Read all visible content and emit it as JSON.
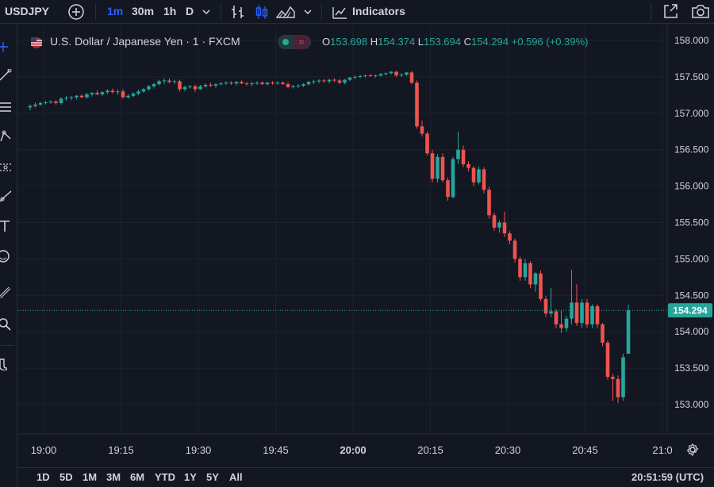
{
  "toolbar": {
    "symbol": "USDJPY",
    "intervals": [
      "1m",
      "30m",
      "1h",
      "D"
    ],
    "active_interval": "1m",
    "indicators_label": "Indicators"
  },
  "legend": {
    "instrument": "U.S. Dollar / Japanese Yen · 1 · FXCM",
    "o_label": "O",
    "o": "153.698",
    "h_label": "H",
    "h": "154.374",
    "l_label": "L",
    "l": "153.694",
    "c_label": "C",
    "c": "154.294",
    "change": "+0.596 (+0.39%)"
  },
  "price_axis": {
    "labels": [
      "158.000",
      "157.500",
      "157.000",
      "156.500",
      "156.000",
      "155.500",
      "155.000",
      "154.500",
      "154.000",
      "153.500",
      "153.000"
    ],
    "current_price_label": "154.294"
  },
  "time_axis": {
    "labels": [
      "19:00",
      "19:15",
      "19:30",
      "19:45",
      "20:00",
      "20:15",
      "20:30",
      "20:45",
      "21:0"
    ]
  },
  "bottom": {
    "ranges": [
      "1D",
      "5D",
      "1M",
      "3M",
      "6M",
      "YTD",
      "1Y",
      "5Y",
      "All"
    ],
    "clock": "20:51:59 (UTC)"
  },
  "colors": {
    "up": "#26a69a",
    "down": "#ef5350",
    "background": "#131722",
    "grid": "#1e222d",
    "accent": "#2962ff"
  },
  "icons": {
    "top": [
      "add-symbol-icon",
      "chevron-down-icon",
      "bar-chart-icon",
      "candles-icon",
      "area-chart-icon",
      "chevron-down-icon",
      "indicators-icon",
      "fullscreen-icon",
      "camera-icon"
    ],
    "left": [
      "crosshair-icon",
      "trendline-icon",
      "fib-icon",
      "pattern-icon",
      "forecast-icon",
      "brush-icon",
      "text-icon",
      "emoji-icon",
      "ruler-icon",
      "zoom-icon",
      "magnet-icon"
    ]
  },
  "chart_data": {
    "type": "candlestick",
    "symbol": "USDJPY",
    "interval": "1m",
    "x_start": "19:00",
    "x_end": "20:51",
    "ylim": [
      152.95,
      158.05
    ],
    "last_price": 154.294,
    "ohlc": [
      [
        157.08,
        157.12,
        157.04,
        157.1
      ],
      [
        157.1,
        157.15,
        157.08,
        157.12
      ],
      [
        157.12,
        157.16,
        157.1,
        157.14
      ],
      [
        157.14,
        157.17,
        157.12,
        157.15
      ],
      [
        157.15,
        157.18,
        157.13,
        157.16
      ],
      [
        157.16,
        157.18,
        157.12,
        157.14
      ],
      [
        157.14,
        157.22,
        157.12,
        157.2
      ],
      [
        157.2,
        157.24,
        157.17,
        157.21
      ],
      [
        157.21,
        157.24,
        157.18,
        157.22
      ],
      [
        157.22,
        157.25,
        157.19,
        157.24
      ],
      [
        157.24,
        157.26,
        157.21,
        157.22
      ],
      [
        157.22,
        157.28,
        157.2,
        157.26
      ],
      [
        157.26,
        157.29,
        157.23,
        157.28
      ],
      [
        157.28,
        157.31,
        157.25,
        157.26
      ],
      [
        157.26,
        157.3,
        157.24,
        157.29
      ],
      [
        157.29,
        157.33,
        157.26,
        157.31
      ],
      [
        157.31,
        157.34,
        157.27,
        157.29
      ],
      [
        157.29,
        157.33,
        157.25,
        157.3
      ],
      [
        157.3,
        157.33,
        157.2,
        157.22
      ],
      [
        157.22,
        157.26,
        157.2,
        157.24
      ],
      [
        157.24,
        157.29,
        157.22,
        157.27
      ],
      [
        157.27,
        157.32,
        157.25,
        157.3
      ],
      [
        157.3,
        157.35,
        157.28,
        157.33
      ],
      [
        157.33,
        157.39,
        157.31,
        157.37
      ],
      [
        157.37,
        157.42,
        157.34,
        157.4
      ],
      [
        157.4,
        157.46,
        157.38,
        157.44
      ],
      [
        157.44,
        157.48,
        157.4,
        157.45
      ],
      [
        157.45,
        157.48,
        157.41,
        157.43
      ],
      [
        157.43,
        157.46,
        157.4,
        157.44
      ],
      [
        157.44,
        157.46,
        157.3,
        157.33
      ],
      [
        157.33,
        157.38,
        157.3,
        157.36
      ],
      [
        157.36,
        157.39,
        157.34,
        157.37
      ],
      [
        157.37,
        157.39,
        157.29,
        157.33
      ],
      [
        157.33,
        157.39,
        157.32,
        157.37
      ],
      [
        157.37,
        157.41,
        157.35,
        157.39
      ],
      [
        157.39,
        157.42,
        157.36,
        157.38
      ],
      [
        157.38,
        157.41,
        157.35,
        157.4
      ],
      [
        157.4,
        157.43,
        157.38,
        157.41
      ],
      [
        157.41,
        157.44,
        157.39,
        157.42
      ],
      [
        157.42,
        157.44,
        157.39,
        157.41
      ],
      [
        157.41,
        157.44,
        157.38,
        157.43
      ],
      [
        157.43,
        157.45,
        157.4,
        157.41
      ],
      [
        157.41,
        157.43,
        157.38,
        157.4
      ],
      [
        157.4,
        157.43,
        157.37,
        157.41
      ],
      [
        157.41,
        157.44,
        157.39,
        157.42
      ],
      [
        157.42,
        157.44,
        157.39,
        157.4
      ],
      [
        157.4,
        157.43,
        157.38,
        157.42
      ],
      [
        157.42,
        157.44,
        157.39,
        157.41
      ],
      [
        157.41,
        157.44,
        157.39,
        157.42
      ],
      [
        157.42,
        157.44,
        157.39,
        157.4
      ],
      [
        157.4,
        157.43,
        157.35,
        157.36
      ],
      [
        157.36,
        157.39,
        157.34,
        157.37
      ],
      [
        157.37,
        157.4,
        157.35,
        157.38
      ],
      [
        157.38,
        157.41,
        157.36,
        157.4
      ],
      [
        157.4,
        157.44,
        157.38,
        157.43
      ],
      [
        157.43,
        157.46,
        157.4,
        157.44
      ],
      [
        157.44,
        157.47,
        157.41,
        157.45
      ],
      [
        157.45,
        157.47,
        157.42,
        157.44
      ],
      [
        157.44,
        157.47,
        157.41,
        157.46
      ],
      [
        157.46,
        157.48,
        157.43,
        157.45
      ],
      [
        157.45,
        157.47,
        157.4,
        157.42
      ],
      [
        157.42,
        157.47,
        157.4,
        157.46
      ],
      [
        157.46,
        157.5,
        157.44,
        157.49
      ],
      [
        157.49,
        157.52,
        157.47,
        157.5
      ],
      [
        157.5,
        157.53,
        157.48,
        157.51
      ],
      [
        157.51,
        157.53,
        157.49,
        157.52
      ],
      [
        157.52,
        157.54,
        157.5,
        157.51
      ],
      [
        157.51,
        157.53,
        157.49,
        157.52
      ],
      [
        157.52,
        157.55,
        157.5,
        157.54
      ],
      [
        157.54,
        157.56,
        157.52,
        157.55
      ],
      [
        157.55,
        157.58,
        157.53,
        157.57
      ],
      [
        157.57,
        157.58,
        157.5,
        157.52
      ],
      [
        157.52,
        157.55,
        157.5,
        157.53
      ],
      [
        157.53,
        157.57,
        157.51,
        157.56
      ],
      [
        157.56,
        157.58,
        157.4,
        157.42
      ],
      [
        157.42,
        157.45,
        156.79,
        156.82
      ],
      [
        156.82,
        156.9,
        156.68,
        156.72
      ],
      [
        156.72,
        156.75,
        156.42,
        156.45
      ],
      [
        156.45,
        156.5,
        156.05,
        156.1
      ],
      [
        156.1,
        156.44,
        156.05,
        156.4
      ],
      [
        156.4,
        156.45,
        156.05,
        156.08
      ],
      [
        156.08,
        156.12,
        155.8,
        155.85
      ],
      [
        155.85,
        156.4,
        155.83,
        156.37
      ],
      [
        156.37,
        156.75,
        156.3,
        156.5
      ],
      [
        156.5,
        156.56,
        156.26,
        156.3
      ],
      [
        156.3,
        156.34,
        156.2,
        156.25
      ],
      [
        156.25,
        156.27,
        156.0,
        156.05
      ],
      [
        156.05,
        156.27,
        156.02,
        156.23
      ],
      [
        156.23,
        156.26,
        155.9,
        155.95
      ],
      [
        155.95,
        155.99,
        155.55,
        155.6
      ],
      [
        155.6,
        155.64,
        155.39,
        155.43
      ],
      [
        155.43,
        155.53,
        155.36,
        155.5
      ],
      [
        155.5,
        155.65,
        155.3,
        155.35
      ],
      [
        155.35,
        155.38,
        155.2,
        155.25
      ],
      [
        155.25,
        155.28,
        154.95,
        155.0
      ],
      [
        155.0,
        155.03,
        154.7,
        154.75
      ],
      [
        154.75,
        155.0,
        154.7,
        154.94
      ],
      [
        154.94,
        154.97,
        154.6,
        154.65
      ],
      [
        154.65,
        154.82,
        154.55,
        154.8
      ],
      [
        154.8,
        154.84,
        154.42,
        154.45
      ],
      [
        154.45,
        154.49,
        154.2,
        154.25
      ],
      [
        154.25,
        154.6,
        154.2,
        154.28
      ],
      [
        154.28,
        154.31,
        154.05,
        154.1
      ],
      [
        154.1,
        154.3,
        153.98,
        154.05
      ],
      [
        154.05,
        154.22,
        154.0,
        154.18
      ],
      [
        154.18,
        154.85,
        154.1,
        154.4
      ],
      [
        154.4,
        154.65,
        154.08,
        154.12
      ],
      [
        154.12,
        154.45,
        154.05,
        154.4
      ],
      [
        154.4,
        154.45,
        154.05,
        154.1
      ],
      [
        154.1,
        154.38,
        154.05,
        154.35
      ],
      [
        154.35,
        154.38,
        154.05,
        154.1
      ],
      [
        154.1,
        154.12,
        153.8,
        153.85
      ],
      [
        153.85,
        153.88,
        153.34,
        153.38
      ],
      [
        153.38,
        153.42,
        153.05,
        153.35
      ],
      [
        153.35,
        153.4,
        153.02,
        153.1
      ],
      [
        153.1,
        153.7,
        153.05,
        153.65
      ],
      [
        153.698,
        154.374,
        153.694,
        154.294
      ]
    ]
  }
}
